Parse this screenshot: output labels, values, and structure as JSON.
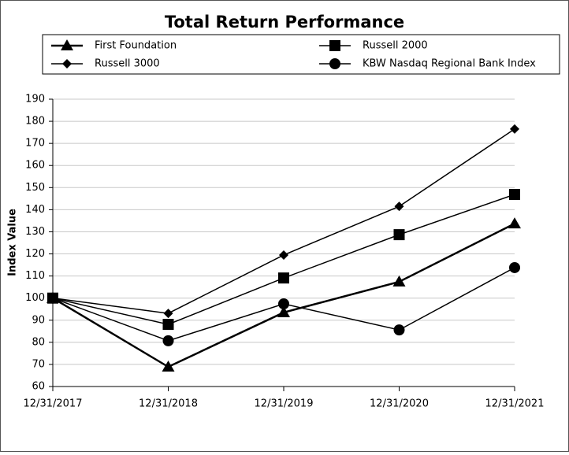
{
  "chart_data": {
    "type": "line",
    "title": "Total Return Performance",
    "y_label": "Index Value",
    "categories": [
      "12/31/2017",
      "12/31/2018",
      "12/31/2019",
      "12/31/2020",
      "12/31/2021"
    ],
    "series": [
      {
        "name": "First Foundation",
        "color": "#000000",
        "marker": "triangle",
        "line_width": 2.5,
        "values": [
          100,
          68.9,
          93.5,
          107.4,
          133.7
        ]
      },
      {
        "name": "Russell 2000",
        "color": "#000000",
        "marker": "square",
        "line_width": 1.5,
        "values": [
          100,
          88.1,
          109.1,
          128.7,
          146.9
        ]
      },
      {
        "name": "Russell 3000",
        "color": "#000000",
        "marker": "diamond",
        "line_width": 1.5,
        "values": [
          100,
          93.1,
          119.5,
          141.5,
          176.5
        ]
      },
      {
        "name": "KBW Nasdaq Regional Bank Index",
        "color": "#000000",
        "marker": "circle",
        "line_width": 1.5,
        "values": [
          100,
          80.7,
          97.4,
          85.6,
          113.8
        ]
      }
    ],
    "ylim": [
      60,
      190
    ],
    "yticks": [
      60,
      70,
      80,
      90,
      100,
      110,
      120,
      130,
      140,
      150,
      160,
      170,
      180,
      190
    ],
    "grid": true,
    "legend": "top"
  }
}
